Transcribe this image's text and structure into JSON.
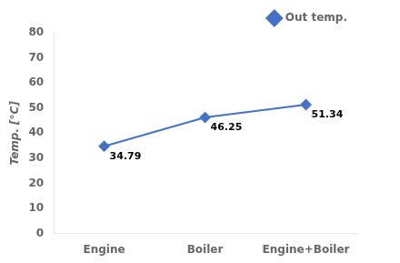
{
  "chart_data": {
    "type": "line",
    "categories": [
      "Engine",
      "Boiler",
      "Engine+Boiler"
    ],
    "series": [
      {
        "name": "Out temp.",
        "color": "#4472c4",
        "values": [
          34.79,
          46.25,
          51.34
        ],
        "marker": "diamond"
      }
    ],
    "ylabel": "Temp. [°C]",
    "ylim": [
      0,
      80
    ],
    "yticks": [
      0,
      10,
      20,
      30,
      40,
      50,
      60,
      70,
      80
    ],
    "grid": false,
    "legend": "upper right",
    "data_labels": true
  }
}
